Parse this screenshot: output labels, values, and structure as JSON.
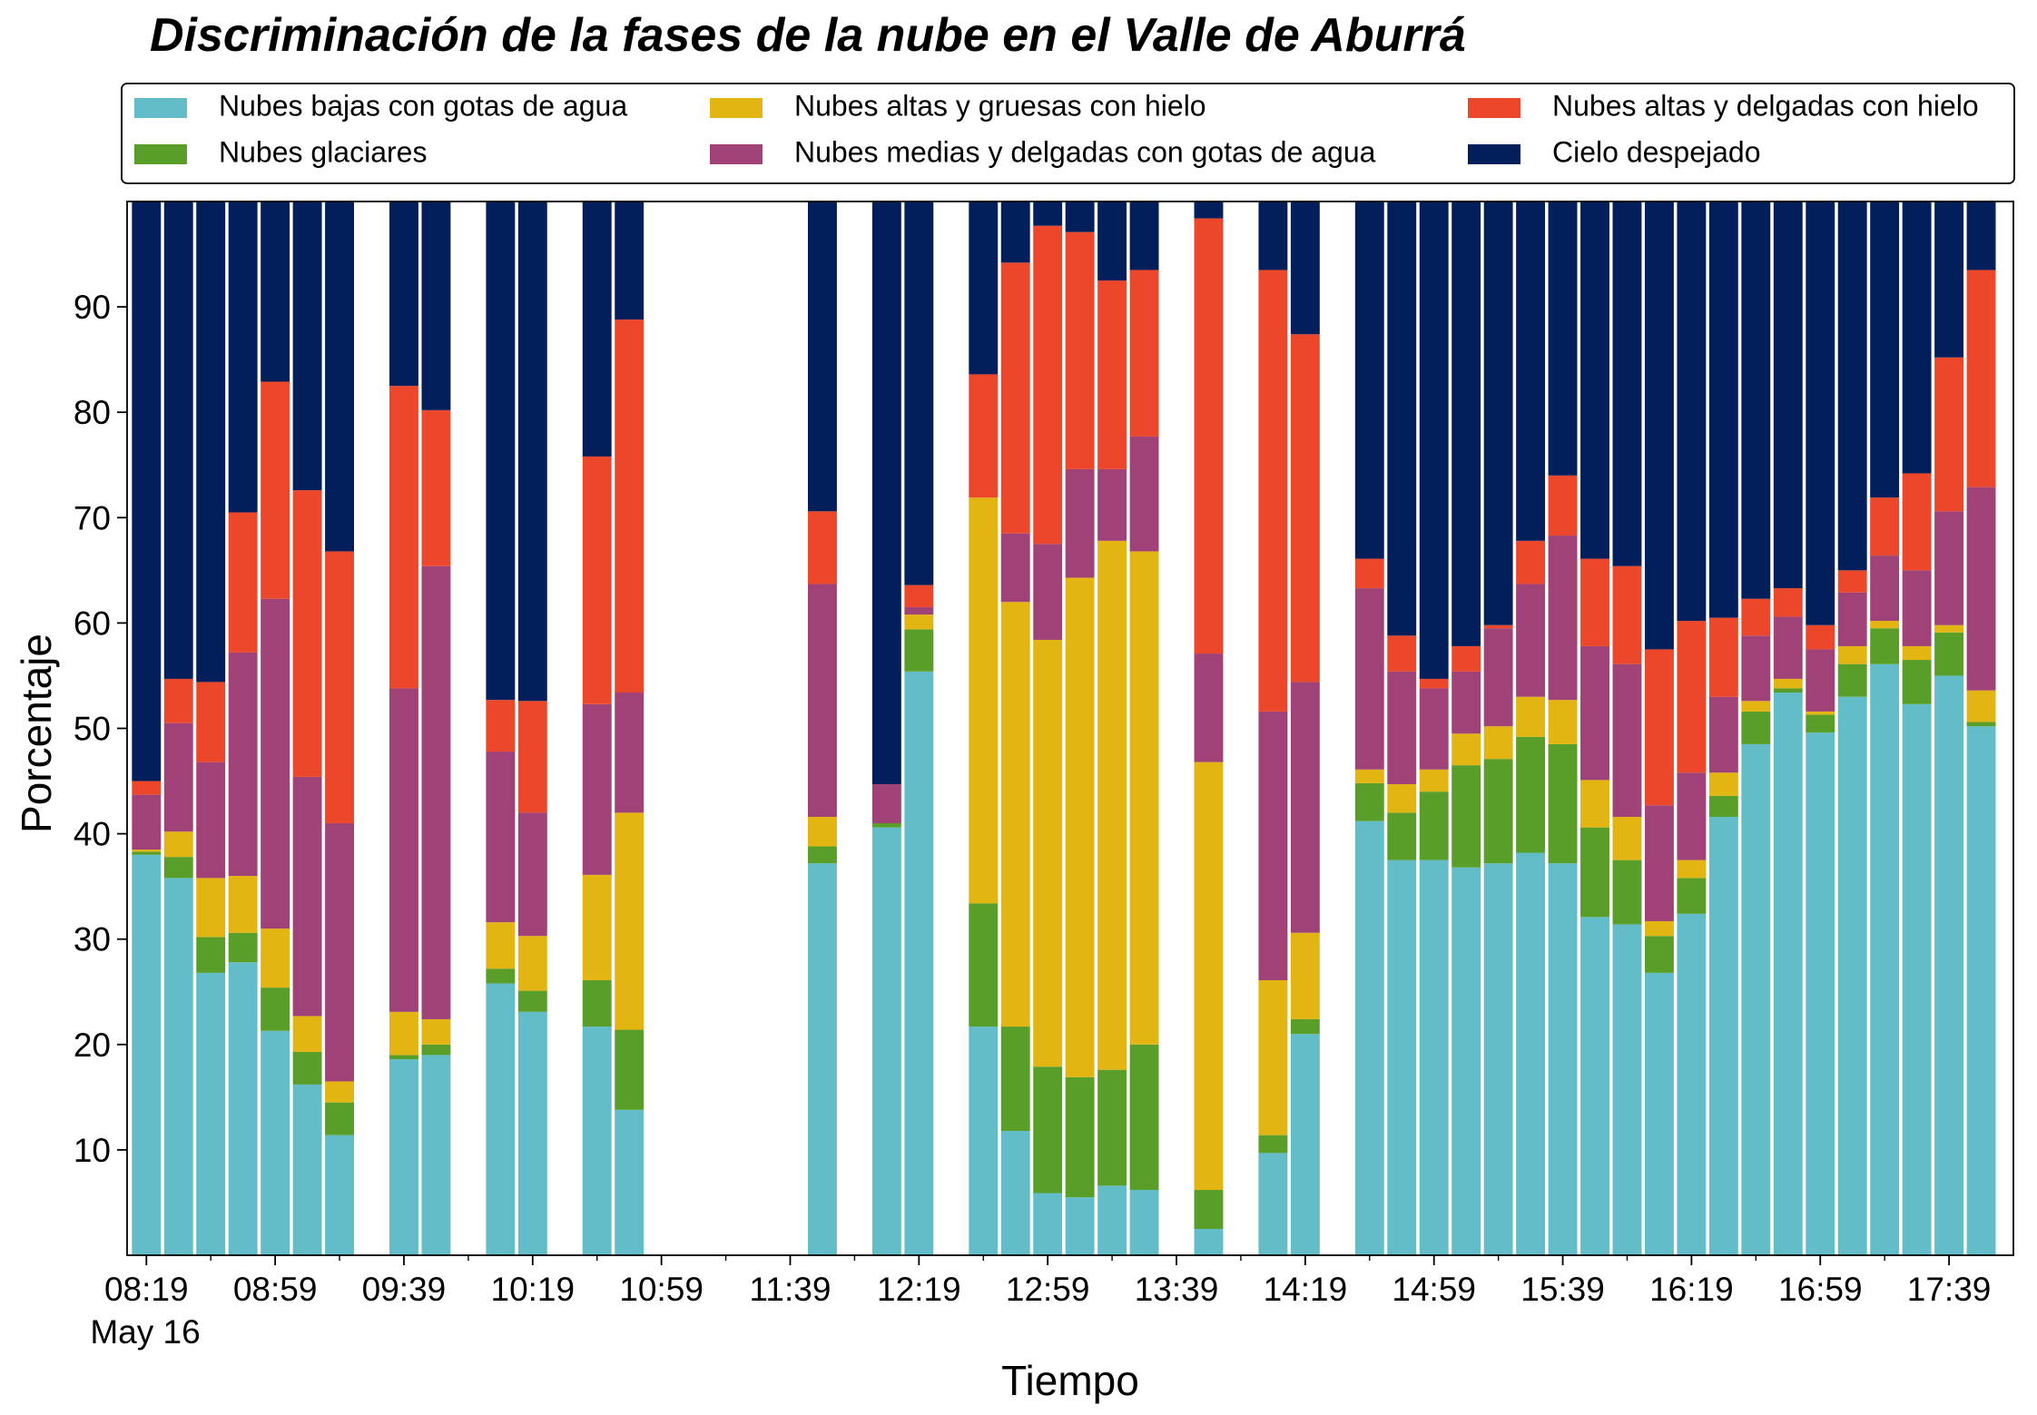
{
  "chart_data": {
    "type": "stacked_bar",
    "title": "Discriminación de la fases de la nube en el Valle de Aburrá",
    "x_label": "Tiempo",
    "y_label": "Porcentaje",
    "date_label": "May 16",
    "x": [
      "08:19",
      "08:29",
      "08:39",
      "08:49",
      "08:59",
      "09:09",
      "09:19",
      "09:39",
      "09:49",
      "10:09",
      "10:19",
      "10:39",
      "10:49",
      "11:49",
      "12:09",
      "12:19",
      "12:39",
      "12:49",
      "12:59",
      "13:09",
      "13:19",
      "13:29",
      "13:49",
      "14:09",
      "14:19",
      "14:39",
      "14:49",
      "14:59",
      "15:09",
      "15:19",
      "15:29",
      "15:39",
      "15:49",
      "15:59",
      "16:09",
      "16:19",
      "16:29",
      "16:39",
      "16:49",
      "16:59",
      "17:09",
      "17:19",
      "17:29",
      "17:39",
      "17:49"
    ],
    "xlim": [
      "08:13",
      "17:59"
    ],
    "xticks": [
      "08:19",
      "08:59",
      "09:39",
      "10:19",
      "10:59",
      "11:39",
      "12:19",
      "12:59",
      "13:39",
      "14:19",
      "14:59",
      "15:39",
      "16:19",
      "16:59",
      "17:39"
    ],
    "xminorticks": [
      "08:39",
      "09:19",
      "09:59",
      "10:39",
      "11:19",
      "11:59",
      "12:39",
      "13:19",
      "13:59",
      "14:39",
      "15:19",
      "15:59",
      "16:39",
      "17:19"
    ],
    "ylim": [
      0,
      100
    ],
    "yticks": [
      10,
      20,
      30,
      40,
      50,
      60,
      70,
      80,
      90
    ],
    "legend": "top",
    "series": [
      {
        "name": "Nubes bajas con gotas de agua",
        "color": "#63bdc8",
        "values": [
          38,
          35.8,
          26.8,
          27.8,
          21.3,
          16.2,
          11.4,
          18.6,
          19.0,
          25.8,
          23.1,
          21.7,
          13.8,
          37.2,
          40.6,
          55.4,
          21.7,
          11.8,
          5.9,
          5.5,
          6.6,
          6.2,
          2.5,
          9.7,
          21.0,
          41.2,
          37.5,
          37.5,
          36.8,
          37.2,
          38.2,
          37.2,
          32.1,
          31.4,
          26.8,
          32.4,
          41.6,
          48.5,
          53.4,
          49.6,
          53.0,
          56.1,
          52.3,
          55.0,
          50.2
        ]
      },
      {
        "name": "Nubes glaciares",
        "color": "#5a9e2a",
        "values": [
          0.3,
          2.0,
          3.4,
          2.8,
          4.1,
          3.1,
          3.1,
          0.4,
          1.0,
          1.4,
          2.0,
          4.4,
          7.6,
          1.6,
          0.4,
          4.0,
          11.7,
          9.9,
          12.0,
          11.4,
          11.0,
          13.8,
          3.7,
          1.7,
          1.4,
          3.6,
          4.5,
          6.5,
          9.7,
          9.9,
          11.0,
          11.3,
          8.5,
          6.1,
          3.5,
          3.4,
          2.0,
          3.1,
          0.4,
          1.7,
          3.1,
          3.4,
          4.2,
          4.1,
          0.4
        ]
      },
      {
        "name": "Nubes altas y gruesas con hielo",
        "color": "#e3b512",
        "values": [
          0.2,
          2.4,
          5.6,
          5.4,
          5.6,
          3.4,
          2.0,
          4.1,
          2.4,
          4.4,
          5.2,
          10.0,
          20.6,
          2.8,
          0,
          1.4,
          38.5,
          40.3,
          40.5,
          47.4,
          50.2,
          46.8,
          40.6,
          14.7,
          8.2,
          1.3,
          2.7,
          2.1,
          3.0,
          3.1,
          3.8,
          4.2,
          4.5,
          4.1,
          1.4,
          1.7,
          2.2,
          1.0,
          0.9,
          0.3,
          1.7,
          0.7,
          1.3,
          0.7,
          3.0
        ]
      },
      {
        "name": "Nubes medias y delgadas con gotas de agua",
        "color": "#a04277",
        "values": [
          5.2,
          10.3,
          11.0,
          21.2,
          31.3,
          22.7,
          24.5,
          30.7,
          43.0,
          16.2,
          11.7,
          16.2,
          11.4,
          22.1,
          3.7,
          0.7,
          0,
          6.5,
          9.1,
          10.3,
          6.8,
          10.9,
          10.3,
          25.5,
          23.8,
          17.2,
          10.7,
          7.7,
          5.9,
          9.3,
          10.7,
          15.6,
          12.7,
          14.5,
          11.0,
          8.3,
          7.2,
          6.2,
          5.9,
          5.9,
          5.1,
          6.2,
          7.2,
          10.8,
          19.3
        ]
      },
      {
        "name": "Nubes altas y delgadas con hielo",
        "color": "#ec472b",
        "values": [
          1.3,
          4.2,
          7.6,
          13.3,
          20.6,
          27.2,
          25.8,
          28.7,
          14.8,
          4.9,
          10.6,
          23.5,
          35.4,
          6.9,
          0,
          2.1,
          11.7,
          25.7,
          30.2,
          22.5,
          17.9,
          15.8,
          41.3,
          41.9,
          33.0,
          2.8,
          3.4,
          0.9,
          2.4,
          0.3,
          4.1,
          5.7,
          8.3,
          9.3,
          14.8,
          14.4,
          7.5,
          3.5,
          2.7,
          2.3,
          2.1,
          5.5,
          9.2,
          14.6,
          20.6
        ]
      },
      {
        "name": "Cielo despejado",
        "color": "#021f5c",
        "values": [
          55,
          45.3,
          45.6,
          29.5,
          17.1,
          27.4,
          33.2,
          17.5,
          19.8,
          47.3,
          47.4,
          24.2,
          11.2,
          29.4,
          55.3,
          36.4,
          16.4,
          5.8,
          2.3,
          2.9,
          7.5,
          6.5,
          1.6,
          6.5,
          12.6,
          33.9,
          41.2,
          45.3,
          42.2,
          40.2,
          32.2,
          26.0,
          33.9,
          34.6,
          42.5,
          39.8,
          39.5,
          37.7,
          36.7,
          40.2,
          35.0,
          28.1,
          25.8,
          14.8,
          6.5
        ]
      }
    ]
  }
}
